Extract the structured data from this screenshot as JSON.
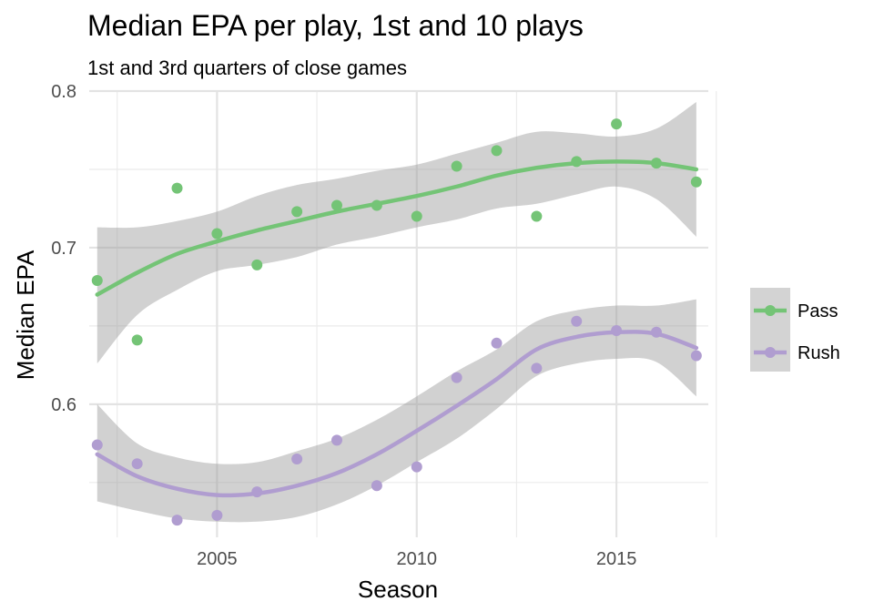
{
  "chart_data": {
    "type": "scatter",
    "title": "Median EPA per play, 1st and 10 plays",
    "subtitle": "1st and 3rd quarters of close games",
    "xlabel": "Season",
    "ylabel": "Median EPA",
    "xlim": [
      2001.8,
      2017.3
    ],
    "ylim": [
      0.515,
      0.8
    ],
    "x_ticks": [
      2005,
      2010,
      2015
    ],
    "y_ticks": [
      0.6,
      0.7,
      0.8
    ],
    "grid": true,
    "legend_position": "right",
    "series": [
      {
        "name": "Pass",
        "color": "#74c476",
        "x": [
          2002,
          2003,
          2004,
          2005,
          2006,
          2007,
          2008,
          2009,
          2010,
          2011,
          2012,
          2013,
          2014,
          2015,
          2016,
          2017
        ],
        "values": [
          0.679,
          0.641,
          0.738,
          0.709,
          0.689,
          0.723,
          0.727,
          0.727,
          0.72,
          0.752,
          0.762,
          0.72,
          0.755,
          0.779,
          0.754,
          0.742
        ],
        "smooth": [
          0.67,
          0.684,
          0.696,
          0.704,
          0.711,
          0.717,
          0.723,
          0.728,
          0.733,
          0.739,
          0.746,
          0.751,
          0.754,
          0.755,
          0.754,
          0.75
        ],
        "ci_upper": [
          0.713,
          0.713,
          0.717,
          0.723,
          0.733,
          0.74,
          0.744,
          0.749,
          0.753,
          0.76,
          0.767,
          0.774,
          0.773,
          0.771,
          0.776,
          0.793
        ],
        "ci_lower": [
          0.626,
          0.657,
          0.673,
          0.685,
          0.689,
          0.694,
          0.702,
          0.707,
          0.713,
          0.718,
          0.725,
          0.728,
          0.734,
          0.739,
          0.731,
          0.707
        ]
      },
      {
        "name": "Rush",
        "color": "#b09dd0",
        "x": [
          2002,
          2003,
          2004,
          2005,
          2006,
          2007,
          2008,
          2009,
          2010,
          2011,
          2012,
          2013,
          2014,
          2015,
          2016,
          2017
        ],
        "values": [
          0.574,
          0.562,
          0.526,
          0.529,
          0.544,
          0.565,
          0.577,
          0.548,
          0.56,
          0.617,
          0.639,
          0.623,
          0.653,
          0.647,
          0.646,
          0.631
        ],
        "smooth": [
          0.568,
          0.554,
          0.546,
          0.542,
          0.543,
          0.548,
          0.556,
          0.568,
          0.583,
          0.599,
          0.616,
          0.635,
          0.643,
          0.646,
          0.645,
          0.636
        ],
        "ci_upper": [
          0.6,
          0.575,
          0.566,
          0.562,
          0.563,
          0.57,
          0.578,
          0.59,
          0.605,
          0.621,
          0.635,
          0.653,
          0.66,
          0.663,
          0.663,
          0.667
        ],
        "ci_lower": [
          0.538,
          0.532,
          0.527,
          0.525,
          0.525,
          0.528,
          0.536,
          0.548,
          0.563,
          0.578,
          0.597,
          0.618,
          0.626,
          0.629,
          0.627,
          0.605
        ]
      }
    ]
  }
}
